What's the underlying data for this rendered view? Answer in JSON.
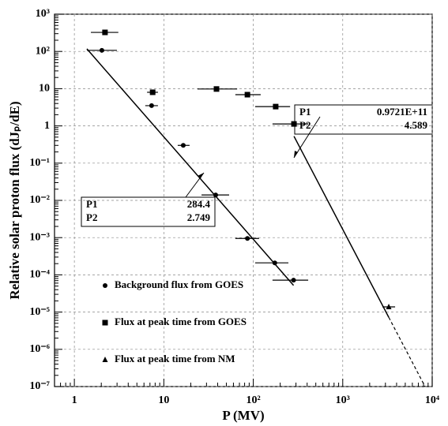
{
  "chart_data": {
    "type": "scatter",
    "xlabel": "P (MV)",
    "ylabel": "Relative solar proton flux (dJₚ/dE)",
    "xlog": true,
    "ylog": true,
    "grid": true,
    "legend": "lower left",
    "xlim": [
      0.6,
      10000
    ],
    "xticks": [
      1,
      10,
      {
        "value": 100,
        "label": "10²"
      },
      {
        "value": 1000,
        "label": "10³"
      },
      {
        "value": 10000,
        "label": "10⁴"
      }
    ],
    "ylim": [
      1e-07,
      1000
    ],
    "yticks": [
      {
        "value": 1e-07,
        "label": "10⁻⁷"
      },
      {
        "value": 1e-06,
        "label": "10⁻⁶"
      },
      {
        "value": 1e-05,
        "label": "10⁻⁵"
      },
      {
        "value": 0.0001,
        "label": "10⁻⁴"
      },
      {
        "value": 0.001,
        "label": "10⁻³"
      },
      {
        "value": 0.01,
        "label": "10⁻²"
      },
      {
        "value": 0.1,
        "label": "10⁻¹"
      },
      1,
      10,
      {
        "value": 100,
        "label": "10²"
      },
      {
        "value": 1000,
        "label": "10³"
      }
    ],
    "series": [
      {
        "name": "Background flux from GOES",
        "marker": "circle",
        "color": "#000000",
        "x": [
          2.03,
          7.3,
          16.5,
          38,
          86,
          174,
          282
        ],
        "values": [
          107,
          3.5,
          0.3,
          0.014,
          0.00095,
          0.00021,
          7.2e-05
        ],
        "xerr_low": [
          1.38,
          6.2,
          14.3,
          26.4,
          63,
          105,
          164
        ],
        "xerr_high": [
          2.99,
          8.6,
          19.4,
          53.7,
          116,
          247,
          411
        ]
      },
      {
        "name": "Flux at peak time from GOES",
        "marker": "square",
        "color": "#000000",
        "x": [
          2.2,
          7.5,
          38.8,
          86,
          178,
          285
        ],
        "values": [
          325,
          8.0,
          9.8,
          6.9,
          3.3,
          1.13
        ],
        "xerr_low": [
          1.53,
          6.5,
          23.8,
          63,
          105,
          164
        ],
        "xerr_high": [
          3.1,
          8.6,
          66,
          121,
          258,
          411
        ]
      },
      {
        "name": "Flux at peak time from NM",
        "marker": "triangle",
        "color": "#000000",
        "x": [
          3270
        ],
        "values": [
          1.38e-05
        ],
        "xerr_low": [
          2780
        ],
        "xerr_high": [
          3850
        ]
      }
    ],
    "fits": [
      {
        "params": [
          {
            "name": "P1",
            "value": 284.4
          },
          {
            "name": "P2",
            "value": 2.749
          }
        ],
        "xrange": [
          1.38,
          282
        ]
      },
      {
        "params": [
          {
            "name": "P1",
            "value": 97210000000,
            "label": "0.9721E+11"
          },
          {
            "name": "P2",
            "value": 4.589
          }
        ],
        "xrange": [
          285,
          3270
        ]
      }
    ]
  }
}
